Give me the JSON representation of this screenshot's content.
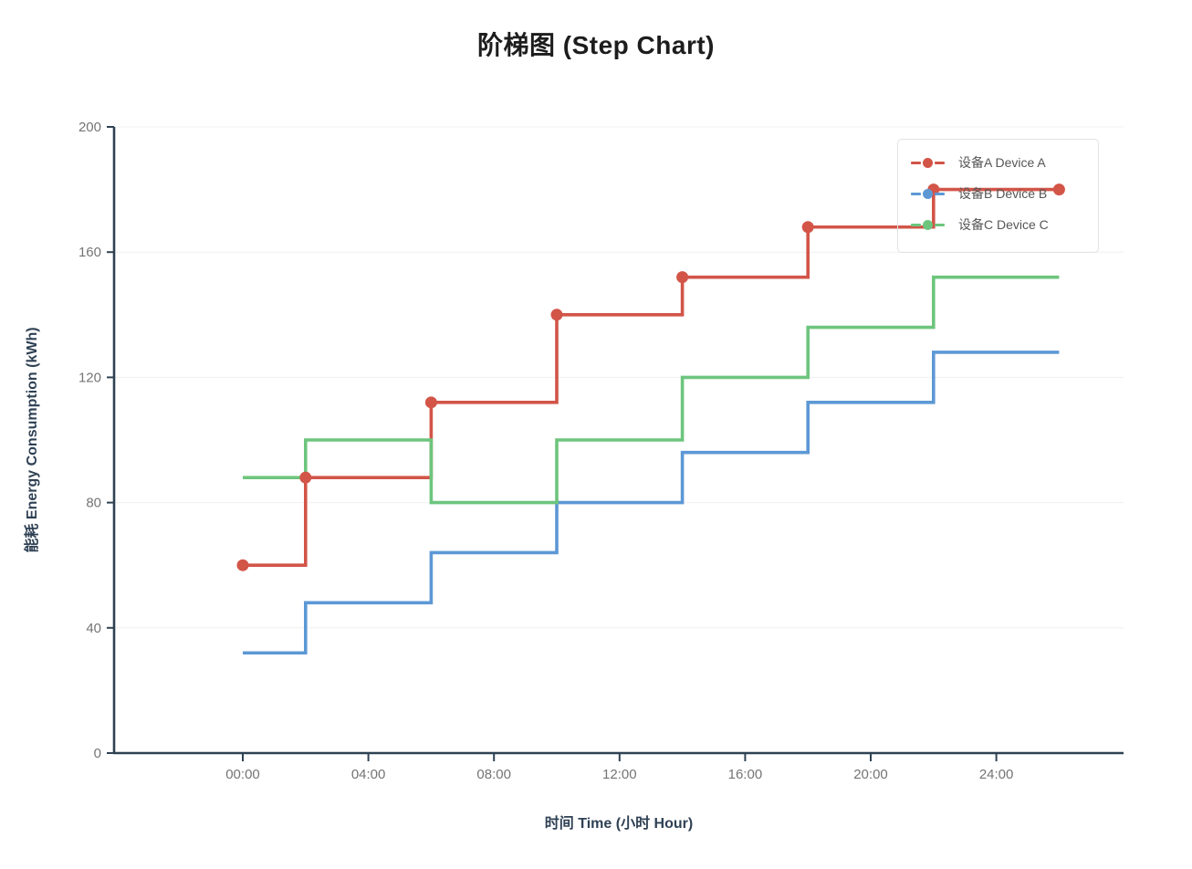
{
  "title": "阶梯图 (Step Chart)",
  "colors": {
    "device_a": "#d25548",
    "device_b": "#5d98d5",
    "device_c": "#6dc57d",
    "axis_line": "#2f4254",
    "tick_label": "#747474",
    "axis_title": "#2f4154",
    "gridline": "#f0f0f0",
    "title_text": "#1d1d1d",
    "legend_text": "#565656",
    "legend_border": "#e2e2e2"
  },
  "chart_data": {
    "type": "line",
    "subtype": "step",
    "step_mode": "after",
    "title": "阶梯图 (Step Chart)",
    "xlabel": "时间 Time (小时 Hour)",
    "ylabel": "能耗 Energy Consumption (kWh)",
    "x_unit": "hour",
    "x": [
      0,
      2,
      6,
      10,
      14,
      18,
      22,
      26
    ],
    "series": [
      {
        "name": "设备A Device A",
        "id": "device-a",
        "color": "#d25548",
        "values": [
          60,
          88,
          112,
          140,
          152,
          168,
          180,
          180
        ],
        "markers": true
      },
      {
        "name": "设备B Device B",
        "id": "device-b",
        "color": "#5d98d5",
        "values": [
          32,
          48,
          64,
          80,
          96,
          112,
          128,
          128
        ],
        "markers": false
      },
      {
        "name": "设备C Device C",
        "id": "device-c",
        "color": "#6dc57d",
        "values": [
          88,
          100,
          80,
          100,
          120,
          136,
          152,
          152
        ],
        "markers": false
      }
    ],
    "ylim": [
      0,
      200
    ],
    "yticks": [
      0,
      40,
      80,
      120,
      160,
      200
    ],
    "xticks": {
      "values": [
        0,
        4,
        8,
        12,
        16,
        20,
        24
      ],
      "labels": [
        "00:00",
        "04:00",
        "08:00",
        "12:00",
        "16:00",
        "20:00",
        "24:00"
      ]
    },
    "grid": "horizontal",
    "legend_position": "top-right",
    "marker_style": "filled-circle"
  }
}
